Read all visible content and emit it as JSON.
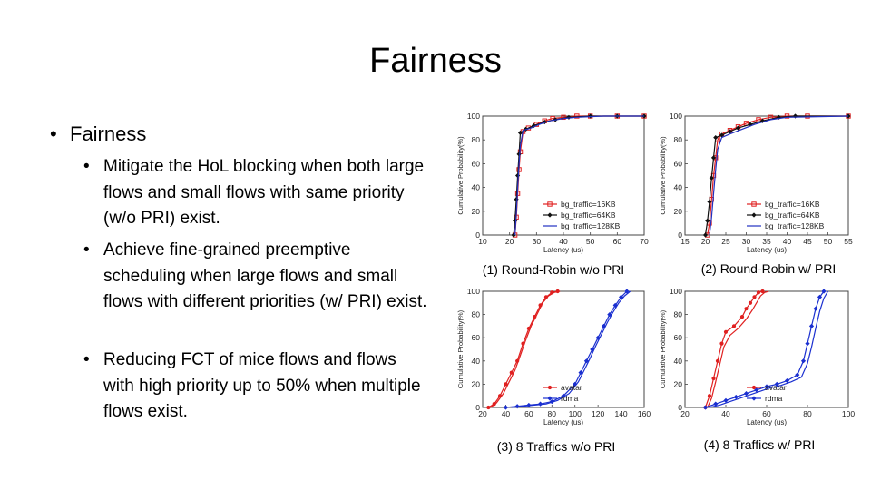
{
  "slide": {
    "title": "Fairness",
    "bullet_level1": "Fairness",
    "bullets": [
      "Mitigate the HoL blocking when both large flows and small flows with same priority (w/o PRI) exist.",
      "Achieve fine-grained preemptive scheduling when large flows and small flows with different priorities (w/ PRI) exist.",
      "Reducing FCT of mice flows and flows with high priority up to 50% when multiple flows exist."
    ],
    "bullet_glyph": "•"
  },
  "captions": [
    "(1) Round-Robin w/o PRI",
    "(2) Round-Robin w/ PRI",
    "(3) 8 Traffics w/o PRI",
    "(4) 8 Traffics w/ PRI"
  ],
  "chart_data": [
    {
      "type": "line",
      "xlabel": "Latency (us)",
      "ylabel": "Cumulative Probability(%)",
      "xlim": [
        10,
        70
      ],
      "ylim": [
        0,
        100
      ],
      "xticks": [
        10,
        20,
        30,
        40,
        50,
        60,
        70
      ],
      "yticks": [
        0,
        20,
        40,
        60,
        80,
        100
      ],
      "legend": "bottom-right",
      "series": [
        {
          "name": "bg_traffic=16KB",
          "color": "#e02020",
          "marker": "square",
          "x": [
            22,
            22.5,
            23,
            23.5,
            24,
            25,
            27,
            30,
            33,
            36,
            40,
            45,
            50,
            60,
            70
          ],
          "y": [
            0,
            15,
            35,
            55,
            70,
            87,
            90,
            93,
            96,
            98,
            99,
            100,
            100,
            100,
            100
          ]
        },
        {
          "name": "bg_traffic=64KB",
          "color": "#111111",
          "marker": "diamond",
          "x": [
            21.5,
            22,
            22.5,
            23,
            23.5,
            24,
            26,
            29,
            33,
            37,
            42,
            50,
            60,
            70
          ],
          "y": [
            0,
            12,
            30,
            50,
            68,
            86,
            89,
            92,
            95,
            97,
            99,
            100,
            100,
            100
          ]
        },
        {
          "name": "bg_traffic=128KB",
          "color": "#2030c0",
          "marker": "none",
          "x": [
            22,
            22.5,
            23,
            23.5,
            24,
            25,
            28,
            31,
            35,
            40,
            45,
            55,
            70
          ],
          "y": [
            0,
            18,
            40,
            60,
            75,
            88,
            90,
            93,
            96,
            98,
            99,
            100,
            100
          ]
        }
      ]
    },
    {
      "type": "line",
      "xlabel": "Latency (us)",
      "ylabel": "Cumulative Probability(%)",
      "xlim": [
        15,
        55
      ],
      "ylim": [
        0,
        100
      ],
      "xticks": [
        15,
        20,
        25,
        30,
        35,
        40,
        45,
        50,
        55
      ],
      "yticks": [
        0,
        20,
        40,
        60,
        80,
        100
      ],
      "legend": "bottom-right",
      "series": [
        {
          "name": "bg_traffic=16KB",
          "color": "#e02020",
          "marker": "square",
          "x": [
            20.5,
            21,
            21.5,
            22,
            22.5,
            23,
            24,
            26,
            28,
            30,
            33,
            36,
            40,
            45,
            55
          ],
          "y": [
            0,
            10,
            30,
            50,
            65,
            80,
            85,
            88,
            91,
            94,
            97,
            99,
            100,
            100,
            100
          ]
        },
        {
          "name": "bg_traffic=64KB",
          "color": "#111111",
          "marker": "diamond",
          "x": [
            20,
            20.5,
            21,
            21.5,
            22,
            22.5,
            24,
            26,
            28,
            31,
            34,
            38,
            42,
            55
          ],
          "y": [
            0,
            12,
            28,
            48,
            65,
            82,
            84,
            87,
            90,
            93,
            96,
            99,
            100,
            100
          ]
        },
        {
          "name": "bg_traffic=128KB",
          "color": "#2030c0",
          "marker": "none",
          "x": [
            21,
            21.5,
            22,
            22.5,
            23,
            24,
            26,
            29,
            32,
            36,
            40,
            55
          ],
          "y": [
            0,
            15,
            35,
            55,
            72,
            82,
            85,
            89,
            93,
            97,
            99,
            100
          ]
        }
      ]
    },
    {
      "type": "line",
      "xlabel": "Latency (us)",
      "ylabel": "Cumulative Probability(%)",
      "xlim": [
        20,
        160
      ],
      "ylim": [
        0,
        100
      ],
      "xticks": [
        20,
        40,
        60,
        80,
        100,
        120,
        140,
        160
      ],
      "yticks": [
        0,
        20,
        40,
        60,
        80,
        100
      ],
      "legend": "bottom-right",
      "series": [
        {
          "name": "avatar",
          "color": "#e02020",
          "marker": "circle",
          "x": [
            25,
            30,
            35,
            40,
            45,
            50,
            55,
            60,
            65,
            70,
            75,
            80,
            85
          ],
          "y": [
            0,
            3,
            10,
            20,
            30,
            40,
            55,
            68,
            78,
            88,
            95,
            99,
            100
          ]
        },
        {
          "name": "avatar",
          "color": "#e02020",
          "marker": "none",
          "hide_legend": true,
          "x": [
            27,
            32,
            38,
            43,
            48,
            52,
            57,
            62,
            67,
            72,
            77,
            82,
            87
          ],
          "y": [
            0,
            4,
            12,
            22,
            32,
            43,
            57,
            70,
            80,
            90,
            96,
            99,
            100
          ]
        },
        {
          "name": "rdma",
          "color": "#1a2fd0",
          "marker": "diamond",
          "x": [
            40,
            50,
            60,
            70,
            80,
            90,
            100,
            105,
            110,
            115,
            120,
            125,
            130,
            135,
            140,
            145
          ],
          "y": [
            0,
            1,
            2,
            3,
            5,
            10,
            20,
            30,
            40,
            50,
            60,
            70,
            80,
            88,
            95,
            100
          ]
        },
        {
          "name": "rdma",
          "color": "#1a2fd0",
          "marker": "none",
          "hide_legend": true,
          "x": [
            45,
            55,
            65,
            75,
            85,
            95,
            103,
            108,
            113,
            118,
            123,
            128,
            133,
            138,
            143,
            148
          ],
          "y": [
            0,
            1,
            2,
            3,
            6,
            12,
            22,
            32,
            42,
            53,
            63,
            73,
            82,
            90,
            96,
            100
          ]
        }
      ]
    },
    {
      "type": "line",
      "xlabel": "Latency (us)",
      "ylabel": "Cumulative Probability(%)",
      "xlim": [
        20,
        100
      ],
      "ylim": [
        0,
        100
      ],
      "xticks": [
        20,
        40,
        60,
        80,
        100
      ],
      "yticks": [
        0,
        20,
        40,
        60,
        80,
        100
      ],
      "legend": "bottom-right",
      "series": [
        {
          "name": "avatar",
          "color": "#e02020",
          "marker": "circle",
          "x": [
            30,
            32,
            34,
            36,
            38,
            40,
            44,
            48,
            50,
            52,
            54,
            56,
            58
          ],
          "y": [
            0,
            10,
            25,
            40,
            55,
            65,
            70,
            78,
            85,
            90,
            95,
            99,
            100
          ]
        },
        {
          "name": "avatar",
          "color": "#e02020",
          "marker": "none",
          "hide_legend": true,
          "x": [
            31,
            33,
            35,
            37,
            39,
            42,
            46,
            50,
            53,
            55,
            57,
            59,
            61
          ],
          "y": [
            0,
            8,
            22,
            37,
            52,
            62,
            68,
            76,
            84,
            90,
            96,
            99,
            100
          ]
        },
        {
          "name": "rdma",
          "color": "#1a2fd0",
          "marker": "diamond",
          "x": [
            30,
            35,
            40,
            45,
            50,
            55,
            60,
            65,
            70,
            75,
            78,
            80,
            82,
            84,
            86,
            88
          ],
          "y": [
            0,
            3,
            6,
            9,
            12,
            15,
            18,
            20,
            23,
            28,
            40,
            55,
            70,
            85,
            95,
            100
          ]
        },
        {
          "name": "rdma",
          "color": "#1a2fd0",
          "marker": "none",
          "hide_legend": true,
          "x": [
            32,
            37,
            42,
            47,
            52,
            57,
            62,
            67,
            72,
            77,
            80,
            82,
            84,
            86,
            88,
            90
          ],
          "y": [
            0,
            2,
            5,
            8,
            11,
            14,
            17,
            19,
            22,
            26,
            38,
            52,
            68,
            83,
            94,
            100
          ]
        }
      ]
    }
  ]
}
